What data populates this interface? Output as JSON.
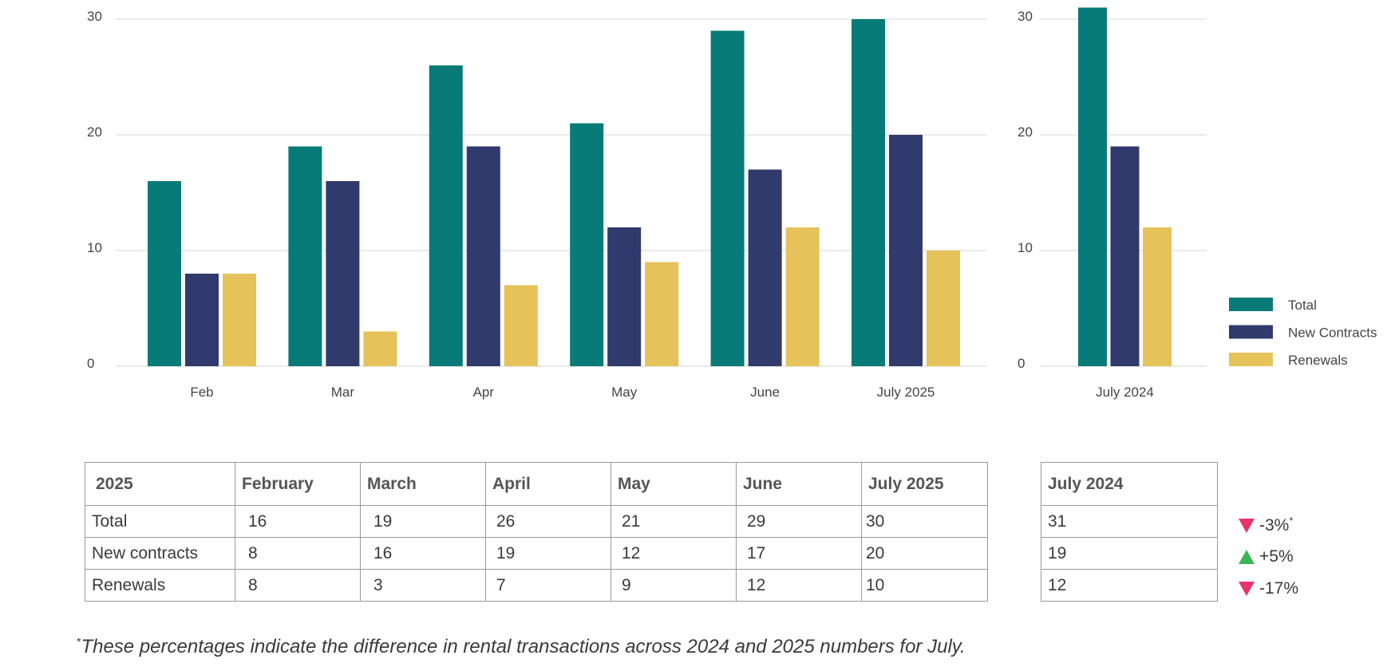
{
  "colors": {
    "total": "#087b78",
    "new_contracts": "#303a6c",
    "renewals": "#e6c25a",
    "grid": "#e3e3e3",
    "down": "#e8336b",
    "up": "#3cb55a"
  },
  "chart_data": [
    {
      "type": "bar",
      "categories": [
        "Feb",
        "Mar",
        "Apr",
        "May",
        "June",
        "July 2025"
      ],
      "series": [
        {
          "name": "Total",
          "values": [
            16,
            19,
            26,
            21,
            29,
            30
          ]
        },
        {
          "name": "New Contracts",
          "values": [
            8,
            16,
            19,
            12,
            17,
            20
          ]
        },
        {
          "name": "Renewals",
          "values": [
            8,
            3,
            7,
            9,
            12,
            10
          ]
        }
      ],
      "yticks": [
        "0",
        "10",
        "20",
        "30"
      ],
      "ylim": [
        0,
        30
      ],
      "grid": true
    },
    {
      "type": "bar",
      "categories": [
        "July 2024"
      ],
      "series": [
        {
          "name": "Total",
          "values": [
            31
          ]
        },
        {
          "name": "New Contracts",
          "values": [
            19
          ]
        },
        {
          "name": "Renewals",
          "values": [
            12
          ]
        }
      ],
      "yticks": [
        "0",
        "10",
        "20",
        "30"
      ],
      "ylim": [
        0,
        30
      ],
      "grid": true,
      "legend": "right"
    }
  ],
  "legend": {
    "total": "Total",
    "new_contracts": "New Contracts",
    "renewals": "Renewals"
  },
  "table_2025": {
    "headers": [
      "2025",
      "February",
      "March",
      "April",
      "May",
      "June",
      "July 2025"
    ],
    "rows": [
      {
        "label": "Total",
        "values": [
          "16",
          "19",
          "26",
          "21",
          "29",
          "30"
        ]
      },
      {
        "label": "New contracts",
        "values": [
          "8",
          "16",
          "19",
          "12",
          "17",
          "20"
        ]
      },
      {
        "label": "Renewals",
        "values": [
          "8",
          "3",
          "7",
          "9",
          "12",
          "10"
        ]
      }
    ]
  },
  "table_2024": {
    "header": "July 2024",
    "rows": [
      "31",
      "19",
      "12"
    ]
  },
  "changes": [
    {
      "direction": "down",
      "text": "-3%",
      "mark": "*"
    },
    {
      "direction": "up",
      "text": "+5%",
      "mark": ""
    },
    {
      "direction": "down",
      "text": "-17%",
      "mark": ""
    }
  ],
  "footnote": {
    "mark": "*",
    "text": "These percentages indicate the difference in rental transactions across 2024 and 2025 numbers for July."
  }
}
